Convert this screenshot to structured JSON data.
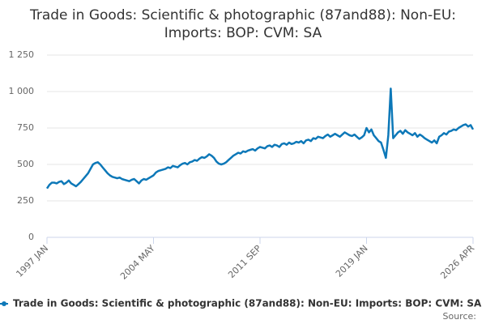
{
  "chart_data": {
    "type": "line",
    "title": "Trade in Goods: Scientific & photographic (87and88): Non-EU: Imports: BOP: CVM: SA",
    "categories": [
      "1997 JAN",
      null,
      null,
      null,
      null,
      null,
      null,
      null,
      null,
      null,
      null,
      null,
      null,
      null,
      null,
      null,
      null,
      null,
      null,
      null,
      null,
      null,
      null,
      null,
      null,
      null,
      null,
      null,
      null,
      null,
      null,
      null,
      null,
      null,
      null,
      null,
      null,
      null,
      null,
      null,
      null,
      null,
      null,
      null,
      "2004 MAY",
      null,
      null,
      null,
      null,
      null,
      null,
      null,
      null,
      null,
      null,
      null,
      null,
      null,
      null,
      null,
      null,
      null,
      null,
      null,
      null,
      null,
      null,
      null,
      null,
      null,
      null,
      null,
      null,
      null,
      null,
      null,
      null,
      null,
      null,
      null,
      null,
      null,
      null,
      null,
      null,
      null,
      null,
      null,
      "2011 SEP",
      null,
      null,
      null,
      null,
      null,
      null,
      null,
      null,
      null,
      null,
      null,
      null,
      null,
      null,
      null,
      null,
      null,
      null,
      null,
      null,
      null,
      null,
      null,
      null,
      null,
      null,
      null,
      null,
      null,
      null,
      null,
      null,
      null,
      null,
      null,
      null,
      null,
      null,
      null,
      null,
      null,
      null,
      null,
      "2019 JAN",
      null,
      null,
      null,
      null,
      null,
      null,
      null,
      null,
      null,
      null,
      null,
      null,
      null,
      null,
      null,
      null,
      null,
      null,
      null,
      null,
      null,
      null,
      null,
      null,
      null,
      null,
      null,
      null,
      null,
      null,
      null,
      null,
      null,
      null,
      null,
      null,
      null,
      null,
      null,
      null,
      null,
      null,
      null,
      "2026 APR"
    ],
    "series": [
      {
        "name": "Trade in Goods: Scientific & photographic (87and88): Non-EU: Imports: BOP: CVM: SA",
        "color": "#0d78b8",
        "values": [
          335,
          360,
          375,
          375,
          370,
          380,
          385,
          365,
          375,
          390,
          370,
          360,
          350,
          365,
          380,
          400,
          420,
          440,
          470,
          500,
          510,
          515,
          500,
          480,
          460,
          440,
          425,
          415,
          410,
          405,
          410,
          400,
          395,
          390,
          385,
          395,
          400,
          385,
          370,
          390,
          400,
          395,
          405,
          415,
          425,
          445,
          455,
          460,
          465,
          470,
          480,
          475,
          490,
          485,
          480,
          495,
          505,
          510,
          500,
          515,
          520,
          530,
          525,
          540,
          550,
          545,
          555,
          570,
          560,
          545,
          520,
          505,
          500,
          505,
          515,
          530,
          545,
          560,
          570,
          580,
          575,
          590,
          585,
          595,
          600,
          605,
          595,
          610,
          620,
          615,
          610,
          625,
          630,
          620,
          635,
          630,
          620,
          640,
          645,
          635,
          650,
          640,
          645,
          655,
          650,
          660,
          645,
          665,
          670,
          660,
          680,
          675,
          690,
          685,
          680,
          695,
          705,
          690,
          700,
          710,
          700,
          690,
          705,
          720,
          710,
          700,
          695,
          705,
          690,
          675,
          685,
          700,
          750,
          720,
          740,
          700,
          680,
          660,
          650,
          600,
          545,
          700,
          1020,
          680,
          700,
          720,
          730,
          710,
          735,
          720,
          710,
          700,
          715,
          690,
          705,
          695,
          680,
          670,
          660,
          650,
          665,
          645,
          690,
          700,
          715,
          705,
          725,
          730,
          740,
          735,
          750,
          760,
          770,
          775,
          760,
          770,
          740
        ]
      }
    ],
    "ylim": [
      0,
      1250
    ],
    "yticks": [
      0,
      250,
      500,
      750,
      {
        "value": 1000,
        "label": "1 000"
      },
      {
        "value": 1250,
        "label": "1 250"
      }
    ],
    "grid": true,
    "legend": "bottom",
    "source": "Source:"
  }
}
